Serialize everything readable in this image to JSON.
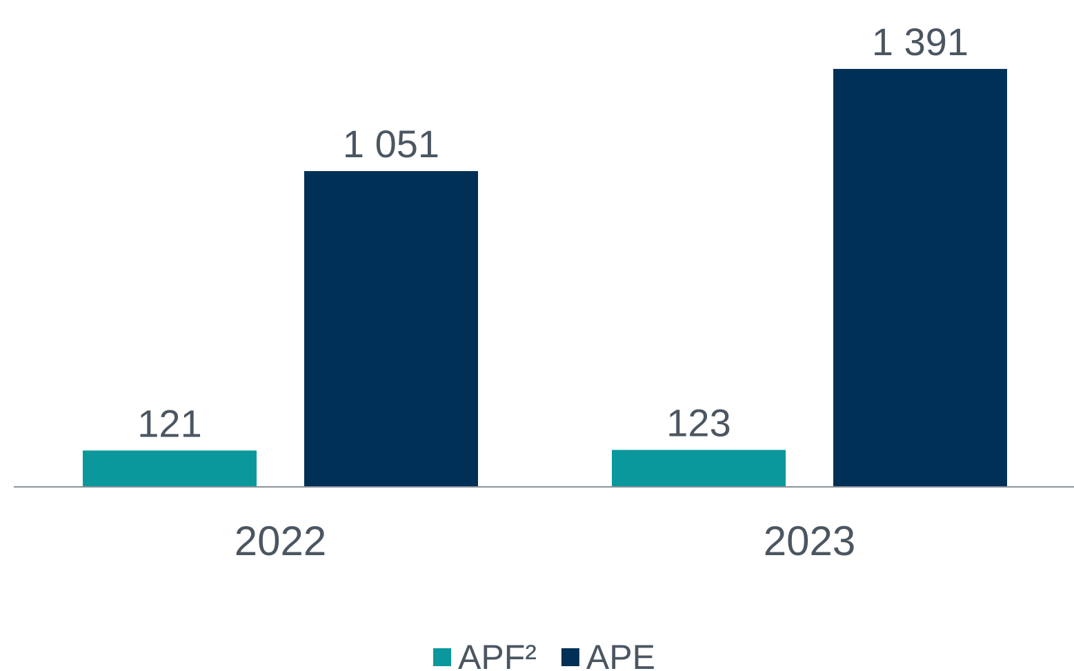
{
  "chart_data": {
    "type": "bar",
    "categories": [
      "2022",
      "2023"
    ],
    "series": [
      {
        "name": "APF²",
        "color": "#0a989c",
        "values": [
          121,
          123
        ],
        "value_labels": [
          "121",
          "123"
        ]
      },
      {
        "name": "APE",
        "color": "#013057",
        "values": [
          1051,
          1391
        ],
        "value_labels": [
          "1 051",
          "1 391"
        ]
      }
    ],
    "ylim": [
      0,
      1600
    ],
    "legend": "bottom"
  }
}
